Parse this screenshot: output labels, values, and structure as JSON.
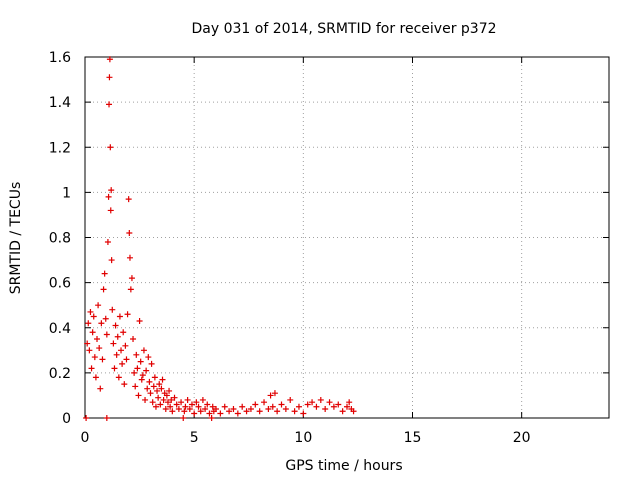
{
  "chart_data": {
    "type": "scatter",
    "title": "Day 031 of 2014, SRMTID for receiver p372",
    "xlabel": "GPS time / hours",
    "ylabel": "SRMTID / TECUs",
    "xlim": [
      0,
      24
    ],
    "ylim": [
      0,
      1.6
    ],
    "x_ticks": [
      0,
      5,
      10,
      15,
      20
    ],
    "x_tick_labels": [
      "0",
      "5",
      "10",
      "15",
      "20"
    ],
    "y_ticks": [
      0,
      0.2,
      0.4,
      0.6,
      0.8,
      1,
      1.2,
      1.4,
      1.6
    ],
    "y_tick_labels": [
      "0",
      "0.2",
      "0.4",
      "0.6",
      "0.8",
      "1",
      "1.2",
      "1.4",
      "1.6"
    ],
    "grid": true,
    "marker": "plus",
    "colors": {
      "marker": "#e00000",
      "grid": "#a0a0a0",
      "axis": "#000000"
    },
    "series": [
      {
        "name": "SRMTID",
        "points": [
          [
            0.05,
            0.0
          ],
          [
            0.1,
            0.33
          ],
          [
            0.15,
            0.42
          ],
          [
            0.2,
            0.3
          ],
          [
            0.25,
            0.47
          ],
          [
            0.3,
            0.22
          ],
          [
            0.35,
            0.38
          ],
          [
            0.4,
            0.45
          ],
          [
            0.45,
            0.27
          ],
          [
            0.5,
            0.18
          ],
          [
            0.55,
            0.35
          ],
          [
            0.6,
            0.5
          ],
          [
            0.65,
            0.31
          ],
          [
            0.7,
            0.13
          ],
          [
            0.75,
            0.42
          ],
          [
            0.8,
            0.26
          ],
          [
            0.85,
            0.57
          ],
          [
            0.9,
            0.64
          ],
          [
            0.95,
            0.44
          ],
          [
            1.0,
            0.37
          ],
          [
            1.0,
            0.0
          ],
          [
            1.05,
            0.78
          ],
          [
            1.08,
            0.98
          ],
          [
            1.1,
            1.39
          ],
          [
            1.12,
            1.51
          ],
          [
            1.14,
            1.59
          ],
          [
            1.16,
            1.2
          ],
          [
            1.18,
            0.92
          ],
          [
            1.2,
            1.01
          ],
          [
            1.22,
            0.7
          ],
          [
            1.25,
            0.48
          ],
          [
            1.3,
            0.33
          ],
          [
            1.35,
            0.22
          ],
          [
            1.4,
            0.41
          ],
          [
            1.45,
            0.28
          ],
          [
            1.5,
            0.36
          ],
          [
            1.55,
            0.18
          ],
          [
            1.6,
            0.45
          ],
          [
            1.65,
            0.3
          ],
          [
            1.7,
            0.24
          ],
          [
            1.75,
            0.38
          ],
          [
            1.8,
            0.15
          ],
          [
            1.85,
            0.32
          ],
          [
            1.9,
            0.26
          ],
          [
            1.95,
            0.46
          ],
          [
            2.0,
            0.97
          ],
          [
            2.03,
            0.82
          ],
          [
            2.06,
            0.71
          ],
          [
            2.1,
            0.57
          ],
          [
            2.15,
            0.62
          ],
          [
            2.2,
            0.35
          ],
          [
            2.25,
            0.2
          ],
          [
            2.3,
            0.14
          ],
          [
            2.35,
            0.28
          ],
          [
            2.4,
            0.22
          ],
          [
            2.45,
            0.1
          ],
          [
            2.5,
            0.43
          ],
          [
            2.55,
            0.25
          ],
          [
            2.6,
            0.17
          ],
          [
            2.65,
            0.19
          ],
          [
            2.7,
            0.3
          ],
          [
            2.75,
            0.08
          ],
          [
            2.8,
            0.21
          ],
          [
            2.85,
            0.13
          ],
          [
            2.9,
            0.27
          ],
          [
            2.95,
            0.16
          ],
          [
            3.0,
            0.11
          ],
          [
            3.05,
            0.24
          ],
          [
            3.1,
            0.07
          ],
          [
            3.15,
            0.14
          ],
          [
            3.2,
            0.18
          ],
          [
            3.25,
            0.05
          ],
          [
            3.3,
            0.12
          ],
          [
            3.35,
            0.09
          ],
          [
            3.4,
            0.15
          ],
          [
            3.45,
            0.06
          ],
          [
            3.5,
            0.13
          ],
          [
            3.55,
            0.17
          ],
          [
            3.6,
            0.08
          ],
          [
            3.65,
            0.11
          ],
          [
            3.7,
            0.04
          ],
          [
            3.75,
            0.1
          ],
          [
            3.8,
            0.07
          ],
          [
            3.85,
            0.12
          ],
          [
            3.9,
            0.05
          ],
          [
            3.95,
            0.08
          ],
          [
            4.0,
            0.03
          ],
          [
            4.1,
            0.09
          ],
          [
            4.2,
            0.06
          ],
          [
            4.3,
            0.04
          ],
          [
            4.4,
            0.07
          ],
          [
            4.5,
            0.0
          ],
          [
            4.55,
            0.03
          ],
          [
            4.6,
            0.05
          ],
          [
            4.7,
            0.08
          ],
          [
            4.8,
            0.04
          ],
          [
            4.9,
            0.06
          ],
          [
            5.0,
            0.02
          ],
          [
            5.1,
            0.07
          ],
          [
            5.2,
            0.05
          ],
          [
            5.3,
            0.03
          ],
          [
            5.4,
            0.08
          ],
          [
            5.5,
            0.04
          ],
          [
            5.6,
            0.06
          ],
          [
            5.7,
            0.02
          ],
          [
            5.8,
            0.0
          ],
          [
            5.85,
            0.05
          ],
          [
            5.9,
            0.03
          ],
          [
            6.0,
            0.04
          ],
          [
            6.2,
            0.02
          ],
          [
            6.4,
            0.05
          ],
          [
            6.6,
            0.03
          ],
          [
            6.8,
            0.04
          ],
          [
            7.0,
            0.02
          ],
          [
            7.2,
            0.05
          ],
          [
            7.4,
            0.03
          ],
          [
            7.6,
            0.04
          ],
          [
            7.8,
            0.06
          ],
          [
            8.0,
            0.03
          ],
          [
            8.2,
            0.07
          ],
          [
            8.4,
            0.04
          ],
          [
            8.5,
            0.1
          ],
          [
            8.6,
            0.05
          ],
          [
            8.7,
            0.11
          ],
          [
            8.8,
            0.03
          ],
          [
            9.0,
            0.06
          ],
          [
            9.2,
            0.04
          ],
          [
            9.4,
            0.08
          ],
          [
            9.6,
            0.03
          ],
          [
            9.8,
            0.05
          ],
          [
            10.0,
            0.02
          ],
          [
            10.2,
            0.06
          ],
          [
            10.4,
            0.07
          ],
          [
            10.6,
            0.05
          ],
          [
            10.8,
            0.08
          ],
          [
            11.0,
            0.04
          ],
          [
            11.2,
            0.07
          ],
          [
            11.4,
            0.05
          ],
          [
            11.6,
            0.06
          ],
          [
            11.8,
            0.03
          ],
          [
            12.0,
            0.05
          ],
          [
            12.1,
            0.07
          ],
          [
            12.2,
            0.04
          ],
          [
            12.3,
            0.03
          ]
        ]
      }
    ]
  }
}
